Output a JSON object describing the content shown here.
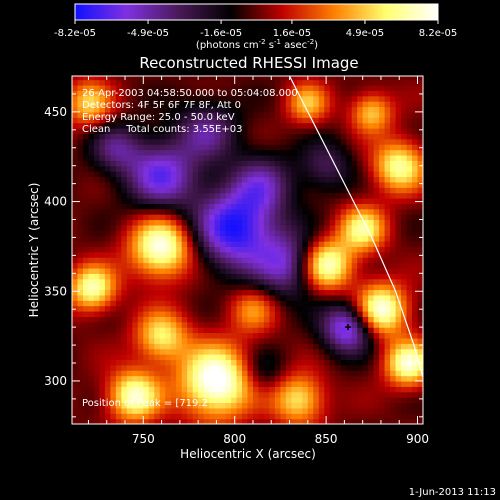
{
  "chart_data": {
    "type": "heatmap",
    "title": "Reconstructed RHESSI Image",
    "xlabel": "Heliocentric X (arcsec)",
    "ylabel": "Heliocentric Y (arcsec)",
    "xlim": [
      711,
      903
    ],
    "ylim": [
      276,
      470
    ],
    "x_ticks": [
      750,
      800,
      850,
      900
    ],
    "y_ticks": [
      300,
      350,
      400,
      450
    ],
    "colorbar": {
      "range": [
        -8.2e-05,
        8.2e-05
      ],
      "tick_labels": [
        "-8.2e-05",
        "-4.9e-05",
        "-1.6e-05",
        "1.6e-05",
        "4.9e-05",
        "8.2e-05"
      ],
      "tick_values": [
        -8.2e-05,
        -4.9e-05,
        -1.6e-05,
        1.6e-05,
        4.9e-05,
        8.2e-05
      ],
      "stops": [
        "#1010ff",
        "#8030e0",
        "#4a1a58",
        "#000000",
        "#c00000",
        "#ff8000",
        "#ffff70",
        "#ffffff"
      ],
      "unit_prefix": "(photons cm",
      "unit_sup1": "-2",
      "unit_mid": " s",
      "unit_sup2": "-1",
      "unit_mid2": " asec",
      "unit_sup3": "-2",
      "unit_suffix": ")"
    },
    "annotations": [
      "26-Apr-2003 04:58:50.000 to 05:04:08.000",
      "Detectors: 4F 5F 6F 7F 8F, Att 0",
      "Energy Range: 25.0 - 50.0 keV",
      "Clean     Total counts: 3.55E+03"
    ],
    "peak_label": "Position of Peak = [719.2",
    "peak_point": [
      862,
      330
    ],
    "limb_curve": [
      [
        830,
        470
      ],
      [
        845,
        440
      ],
      [
        860,
        410
      ],
      [
        875,
        380
      ],
      [
        888,
        350
      ],
      [
        898,
        320
      ],
      [
        903,
        302
      ]
    ],
    "sources": [
      {
        "x": 760,
        "y": 375,
        "amp": 1.0,
        "sigma": 12
      },
      {
        "x": 722,
        "y": 352,
        "amp": 0.85,
        "sigma": 9
      },
      {
        "x": 720,
        "y": 455,
        "amp": 0.6,
        "sigma": 9
      },
      {
        "x": 790,
        "y": 300,
        "amp": 1.1,
        "sigma": 14
      },
      {
        "x": 745,
        "y": 292,
        "amp": 0.9,
        "sigma": 10
      },
      {
        "x": 760,
        "y": 325,
        "amp": 0.7,
        "sigma": 10
      },
      {
        "x": 850,
        "y": 365,
        "amp": 1.0,
        "sigma": 10
      },
      {
        "x": 870,
        "y": 385,
        "amp": 0.75,
        "sigma": 9
      },
      {
        "x": 880,
        "y": 340,
        "amp": 1.0,
        "sigma": 10
      },
      {
        "x": 895,
        "y": 310,
        "amp": 0.9,
        "sigma": 9
      },
      {
        "x": 835,
        "y": 290,
        "amp": 0.7,
        "sigma": 10
      },
      {
        "x": 890,
        "y": 420,
        "amp": 0.8,
        "sigma": 10
      },
      {
        "x": 875,
        "y": 450,
        "amp": 0.6,
        "sigma": 8
      },
      {
        "x": 810,
        "y": 340,
        "amp": 0.45,
        "sigma": 9
      },
      {
        "x": 840,
        "y": 455,
        "amp": 0.55,
        "sigma": 8
      },
      {
        "x": 800,
        "y": 385,
        "amp": -0.95,
        "sigma": 16
      },
      {
        "x": 760,
        "y": 415,
        "amp": -0.75,
        "sigma": 14
      },
      {
        "x": 830,
        "y": 365,
        "amp": -0.65,
        "sigma": 13
      },
      {
        "x": 862,
        "y": 330,
        "amp": -0.85,
        "sigma": 10
      },
      {
        "x": 785,
        "y": 440,
        "amp": -0.5,
        "sigma": 12
      },
      {
        "x": 735,
        "y": 430,
        "amp": -0.45,
        "sigma": 10
      },
      {
        "x": 815,
        "y": 410,
        "amp": -0.5,
        "sigma": 12
      },
      {
        "x": 850,
        "y": 420,
        "amp": -0.4,
        "sigma": 10
      },
      {
        "x": 815,
        "y": 305,
        "amp": -0.3,
        "sigma": 9
      }
    ]
  },
  "footer": {
    "date": "1-Jun-2013 11:13"
  }
}
